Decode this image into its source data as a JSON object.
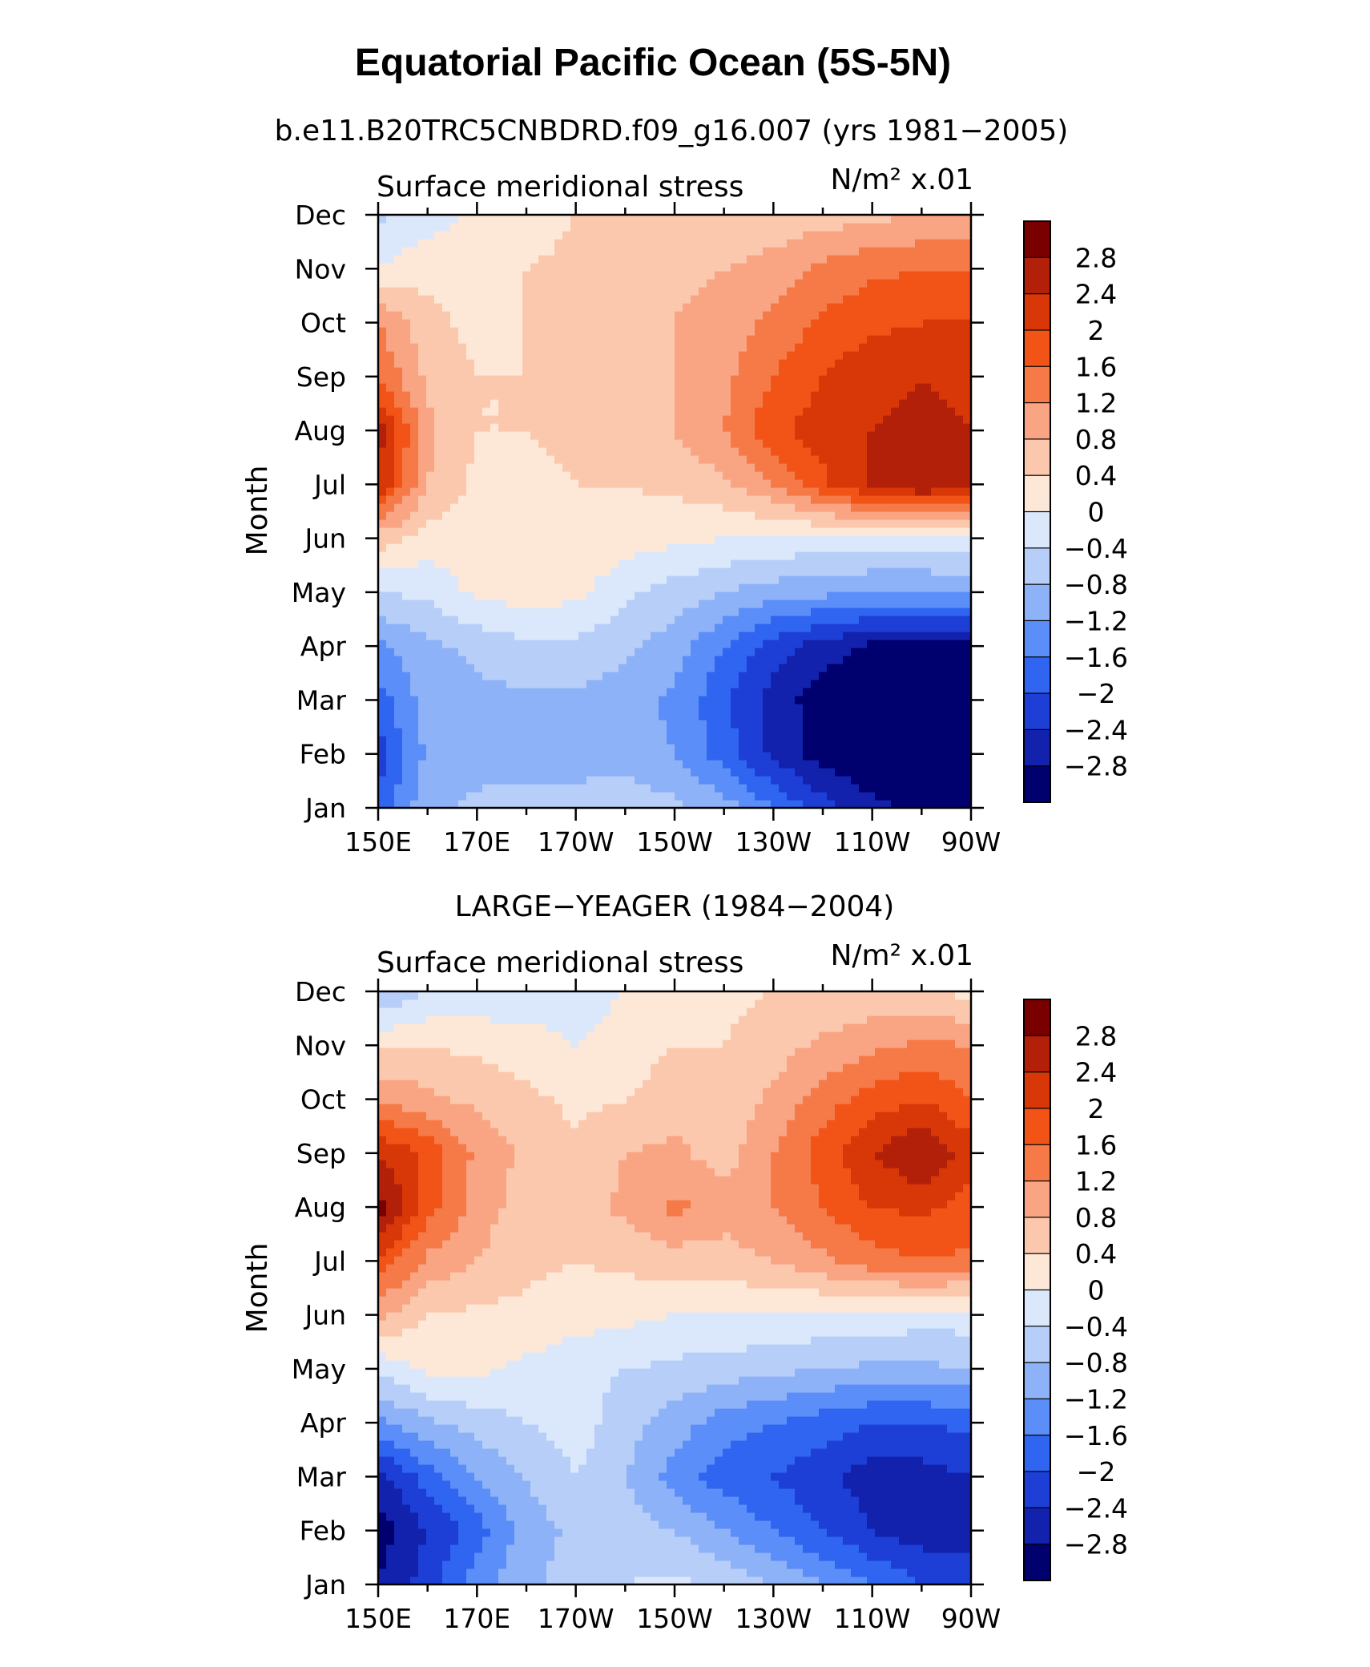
{
  "title": "Equatorial Pacific Ocean (5S-5N)",
  "colorbar_levels": [
    "2.8",
    "2.4",
    "2",
    "1.6",
    "1.2",
    "0.8",
    "0.4",
    "0",
    "−0.4",
    "−0.8",
    "−1.2",
    "−1.6",
    "−2",
    "−2.4",
    "−2.8"
  ],
  "palette": [
    "#7a0000",
    "#b3200a",
    "#d83808",
    "#f25418",
    "#f57a48",
    "#f9a483",
    "#fbc8ad",
    "#fde8d8",
    "#dbe8fc",
    "#b7cff8",
    "#8eb2f7",
    "#5b8ef8",
    "#2f65f0",
    "#1d3fd6",
    "#1222ad",
    "#00006e"
  ],
  "panels": [
    {
      "subtitle": "b.e11.B20TRC5CNBDRD.f09_g16.007 (yrs 1981−2005)",
      "left_label": "Surface meridional stress",
      "right_label": "N/m² x.01",
      "ylabel": "Month"
    },
    {
      "subtitle": "LARGE−YEAGER (1984−2004)",
      "left_label": "Surface meridional stress",
      "right_label": "N/m² x.01",
      "ylabel": "Month"
    }
  ],
  "chart_data": [
    {
      "type": "heatmap",
      "title": "b.e11.B20TRC5CNBDRD.f09_g16.007 (yrs 1981−2005)",
      "variable": "Surface meridional stress",
      "units": "N/m² x.01",
      "xlabel": "",
      "ylabel": "Month",
      "x_ticks": [
        "150E",
        "170E",
        "170W",
        "150W",
        "130W",
        "110W",
        "90W"
      ],
      "y_ticks": [
        "Jan",
        "Feb",
        "Mar",
        "Apr",
        "May",
        "Jun",
        "Jul",
        "Aug",
        "Sep",
        "Oct",
        "Nov",
        "Dec"
      ],
      "x": [
        150,
        160,
        170,
        180,
        190,
        200,
        210,
        220,
        230,
        240,
        250,
        260,
        270
      ],
      "y": [
        "Jan",
        "Feb",
        "Mar",
        "Apr",
        "May",
        "Jun",
        "Jul",
        "Aug",
        "Sep",
        "Oct",
        "Nov",
        "Dec"
      ],
      "values": [
        [
          -1.9,
          -0.9,
          -0.7,
          -0.6,
          -0.6,
          -0.5,
          -0.7,
          -1.0,
          -1.6,
          -2.2,
          -2.7,
          -2.9,
          -2.9
        ],
        [
          -2.2,
          -1.1,
          -1.0,
          -1.0,
          -1.0,
          -1.0,
          -1.2,
          -1.8,
          -2.5,
          -3.0,
          -3.2,
          -3.2,
          -3.2
        ],
        [
          -1.8,
          -1.0,
          -0.9,
          -0.9,
          -0.9,
          -1.0,
          -1.3,
          -1.9,
          -2.6,
          -3.0,
          -3.2,
          -3.2,
          -3.2
        ],
        [
          -1.3,
          -0.9,
          -0.7,
          -0.5,
          -0.5,
          -0.7,
          -1.0,
          -1.6,
          -2.2,
          -2.6,
          -2.9,
          -3.0,
          -3.0
        ],
        [
          -0.4,
          -0.3,
          0.1,
          0.2,
          0.1,
          -0.3,
          -0.6,
          -0.8,
          -1.0,
          -1.1,
          -1.2,
          -1.2,
          -1.1
        ],
        [
          0.6,
          0.2,
          0.2,
          0.3,
          0.3,
          0.2,
          0.1,
          0.0,
          -0.1,
          -0.1,
          -0.2,
          -0.2,
          -0.2
        ],
        [
          2.4,
          0.8,
          0.3,
          0.3,
          0.4,
          0.4,
          0.5,
          0.7,
          1.2,
          1.9,
          2.5,
          2.8,
          2.7
        ],
        [
          2.6,
          0.9,
          0.4,
          0.4,
          0.5,
          0.6,
          0.8,
          1.2,
          1.9,
          2.2,
          2.4,
          2.5,
          2.4
        ],
        [
          1.6,
          0.7,
          0.4,
          0.4,
          0.5,
          0.6,
          0.8,
          1.1,
          1.6,
          2.0,
          2.3,
          2.4,
          2.3
        ],
        [
          1.2,
          0.5,
          0.3,
          0.4,
          0.5,
          0.6,
          0.8,
          1.0,
          1.3,
          1.7,
          1.9,
          2.0,
          2.0
        ],
        [
          0.0,
          0.3,
          0.3,
          0.4,
          0.5,
          0.6,
          0.7,
          0.8,
          1.0,
          1.3,
          1.5,
          1.6,
          1.6
        ],
        [
          -0.5,
          -0.2,
          0.1,
          0.2,
          0.4,
          0.4,
          0.4,
          0.4,
          0.5,
          0.6,
          0.7,
          0.8,
          0.8
        ]
      ],
      "levels": [
        -2.8,
        -2.4,
        -2.0,
        -1.6,
        -1.2,
        -0.8,
        -0.4,
        0.0,
        0.4,
        0.8,
        1.2,
        1.6,
        2.0,
        2.4,
        2.8
      ]
    },
    {
      "type": "heatmap",
      "title": "LARGE−YEAGER (1984−2004)",
      "variable": "Surface meridional stress",
      "units": "N/m² x.01",
      "xlabel": "",
      "ylabel": "Month",
      "x_ticks": [
        "150E",
        "170E",
        "170W",
        "150W",
        "130W",
        "110W",
        "90W"
      ],
      "y_ticks": [
        "Jan",
        "Feb",
        "Mar",
        "Apr",
        "May",
        "Jun",
        "Jul",
        "Aug",
        "Sep",
        "Oct",
        "Nov",
        "Dec"
      ],
      "x": [
        150,
        160,
        170,
        180,
        190,
        200,
        210,
        220,
        230,
        240,
        250,
        260,
        270
      ],
      "y": [
        "Jan",
        "Feb",
        "Mar",
        "Apr",
        "May",
        "Jun",
        "Jul",
        "Aug",
        "Sep",
        "Oct",
        "Nov",
        "Dec"
      ],
      "values": [
        [
          -2.8,
          -2.2,
          -1.4,
          -0.9,
          -0.6,
          -0.4,
          -0.3,
          -0.5,
          -0.8,
          -1.2,
          -1.6,
          -2.0,
          -2.2
        ],
        [
          -3.0,
          -2.4,
          -1.8,
          -1.0,
          -0.7,
          -0.6,
          -0.8,
          -1.2,
          -1.6,
          -2.0,
          -2.4,
          -2.6,
          -2.5
        ],
        [
          -2.6,
          -1.8,
          -1.2,
          -0.8,
          -0.4,
          -0.8,
          -1.4,
          -1.8,
          -2.0,
          -2.3,
          -2.6,
          -2.6,
          -2.4
        ],
        [
          -1.3,
          -0.9,
          -0.6,
          -0.4,
          -0.2,
          -0.6,
          -1.0,
          -1.4,
          -1.6,
          -1.8,
          -2.0,
          -2.0,
          -1.9
        ],
        [
          -0.3,
          0.1,
          0.1,
          -0.1,
          -0.3,
          -0.4,
          -0.5,
          -0.6,
          -0.7,
          -0.8,
          -0.9,
          -0.9,
          -0.8
        ],
        [
          0.9,
          0.4,
          0.3,
          0.3,
          0.2,
          0.1,
          0.0,
          0.0,
          0.0,
          -0.1,
          -0.1,
          -0.2,
          -0.2
        ],
        [
          1.9,
          1.1,
          0.8,
          0.5,
          0.4,
          0.5,
          0.6,
          0.6,
          0.8,
          1.1,
          1.4,
          1.6,
          1.5
        ],
        [
          3.0,
          1.8,
          1.0,
          0.6,
          0.6,
          0.9,
          1.3,
          1.0,
          1.2,
          1.6,
          2.0,
          2.1,
          1.8
        ],
        [
          2.4,
          1.9,
          1.1,
          0.7,
          0.5,
          0.8,
          0.9,
          0.6,
          1.2,
          1.8,
          2.4,
          2.8,
          2.2
        ],
        [
          1.2,
          0.9,
          0.7,
          0.5,
          0.3,
          0.4,
          0.6,
          0.5,
          0.9,
          1.4,
          1.8,
          2.0,
          1.6
        ],
        [
          0.3,
          0.4,
          0.3,
          0.2,
          0.0,
          0.2,
          0.4,
          0.4,
          0.6,
          0.9,
          1.1,
          1.3,
          1.2
        ],
        [
          -0.8,
          -0.4,
          -0.3,
          -0.3,
          -0.2,
          0.0,
          0.2,
          0.3,
          0.4,
          0.4,
          0.5,
          0.4,
          0.3
        ]
      ],
      "levels": [
        -2.8,
        -2.4,
        -2.0,
        -1.6,
        -1.2,
        -0.8,
        -0.4,
        0.0,
        0.4,
        0.8,
        1.2,
        1.6,
        2.0,
        2.4,
        2.8
      ]
    }
  ]
}
